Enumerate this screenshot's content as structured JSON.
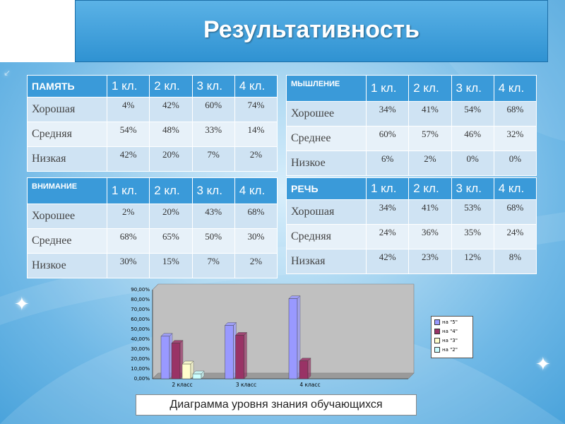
{
  "header": {
    "title": "Результативность"
  },
  "tables": [
    {
      "name": "ПАМЯТЬ",
      "columns": [
        "1 кл.",
        "2 кл.",
        "3 кл.",
        "4 кл."
      ],
      "rows": [
        {
          "label": "Хорошая",
          "values": [
            "4%",
            "42%",
            "60%",
            "74%"
          ]
        },
        {
          "label": "Средняя",
          "values": [
            "54%",
            "48%",
            "33%",
            "14%"
          ]
        },
        {
          "label": "Низкая",
          "values": [
            "42%",
            "20%",
            "7%",
            "2%"
          ]
        }
      ]
    },
    {
      "name": "МЫШЛЕНИЕ",
      "columns": [
        "1 кл.",
        "2 кл.",
        "3 кл.",
        "4 кл."
      ],
      "rows": [
        {
          "label": "Хорошее",
          "values": [
            "34%",
            "41%",
            "54%",
            "68%"
          ]
        },
        {
          "label": "Среднее",
          "values": [
            "60%",
            "57%",
            "46%",
            "32%"
          ]
        },
        {
          "label": "Низкое",
          "values": [
            "6%",
            "2%",
            "0%",
            "0%"
          ]
        }
      ]
    },
    {
      "name": "ВНИМАНИЕ",
      "columns": [
        "1 кл.",
        "2 кл.",
        "3 кл.",
        "4 кл."
      ],
      "rows": [
        {
          "label": "Хорошее",
          "values": [
            "2%",
            "20%",
            "43%",
            "68%"
          ]
        },
        {
          "label": "Среднее",
          "values": [
            "68%",
            "65%",
            "50%",
            "30%"
          ]
        },
        {
          "label": "Низкое",
          "values": [
            "30%",
            "15%",
            "7%",
            "2%"
          ]
        }
      ]
    },
    {
      "name": "РЕЧЬ",
      "columns": [
        "1 кл.",
        "2 кл.",
        "3 кл.",
        "4 кл."
      ],
      "rows": [
        {
          "label": "Хорошая",
          "values": [
            "34%",
            "41%",
            "53%",
            "68%"
          ]
        },
        {
          "label": "Средняя",
          "values": [
            "24%",
            "36%",
            "35%",
            "24%"
          ]
        },
        {
          "label": "Низкая",
          "values": [
            "42%",
            "23%",
            "12%",
            "8%"
          ]
        }
      ]
    }
  ],
  "chart_data": {
    "type": "bar",
    "categories": [
      "2 класс",
      "3 класс",
      "4 класс"
    ],
    "ylim": [
      0,
      90
    ],
    "yticks": [
      "0,00%",
      "10,00%",
      "20,00%",
      "30,00%",
      "40,00%",
      "50,00%",
      "60,00%",
      "70,00%",
      "80,00%",
      "90,00%"
    ],
    "series": [
      {
        "name": "на \"5\"",
        "color": "#9999ff",
        "values": [
          43,
          54,
          81
        ]
      },
      {
        "name": "на \"4\"",
        "color": "#993366",
        "values": [
          36,
          44,
          18
        ]
      },
      {
        "name": "на \"3\"",
        "color": "#ffffcc",
        "values": [
          15,
          null,
          null
        ]
      },
      {
        "name": "на \"2\"",
        "color": "#ccffff",
        "values": [
          5,
          null,
          null
        ]
      }
    ],
    "legend": "right",
    "grid": false
  },
  "caption": "Диаграмма уровня знания обучающихся",
  "colors": {
    "title_bg": "#3a9ad9",
    "header_cell": "#3a9ad9",
    "row_odd": "#cfe3f3",
    "row_even": "#e7f1f9"
  }
}
